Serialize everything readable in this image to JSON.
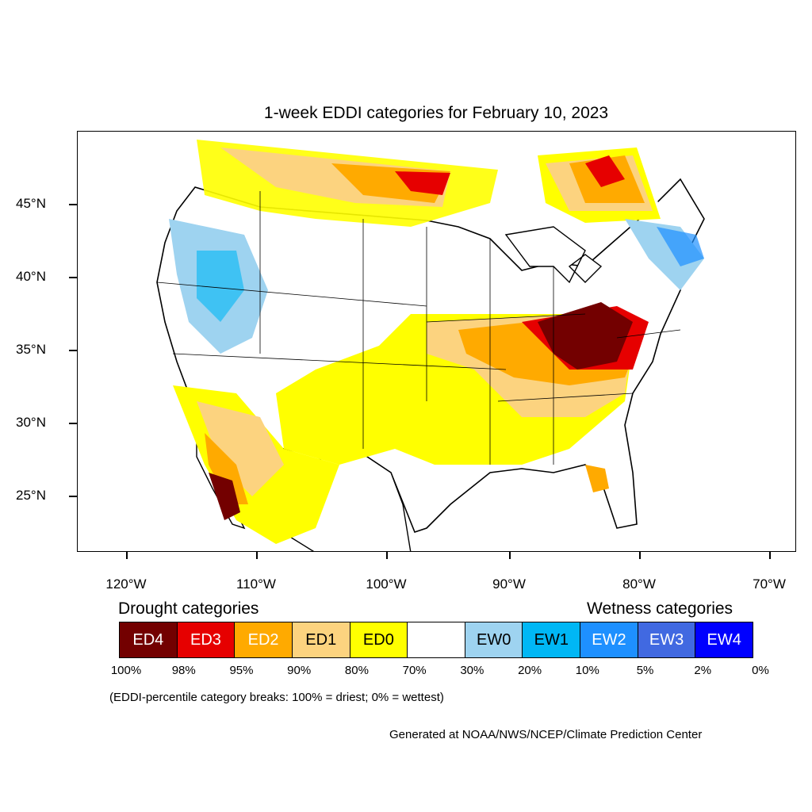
{
  "title": "1-week EDDI categories for February 10, 2023",
  "map": {
    "lat_labels": [
      "45°N",
      "40°N",
      "35°N",
      "30°N",
      "25°N"
    ],
    "lon_labels": [
      "120°W",
      "110°W",
      "100°W",
      "90°W",
      "80°W",
      "70°W"
    ]
  },
  "legend": {
    "drought_title": "Drought categories",
    "wetness_title": "Wetness categories",
    "categories": [
      {
        "label": "ED4",
        "color": "#730000",
        "text_color": "#ffffff"
      },
      {
        "label": "ED3",
        "color": "#e60000",
        "text_color": "#ffffff"
      },
      {
        "label": "ED2",
        "color": "#ffaa00",
        "text_color": "#ffffff"
      },
      {
        "label": "ED1",
        "color": "#fcd37f",
        "text_color": "#000000"
      },
      {
        "label": "ED0",
        "color": "#ffff00",
        "text_color": "#000000"
      },
      {
        "label": "",
        "color": "#ffffff",
        "text_color": "#000000"
      },
      {
        "label": "EW0",
        "color": "#9ed3f0",
        "text_color": "#000000"
      },
      {
        "label": "EW1",
        "color": "#00b7f5",
        "text_color": "#000000"
      },
      {
        "label": "EW2",
        "color": "#1e90ff",
        "text_color": "#ffffff"
      },
      {
        "label": "EW3",
        "color": "#4169e1",
        "text_color": "#ffffff"
      },
      {
        "label": "EW4",
        "color": "#0000ff",
        "text_color": "#ffffff"
      }
    ],
    "percentiles": [
      "100%",
      "98%",
      "95%",
      "90%",
      "80%",
      "70%",
      "30%",
      "20%",
      "10%",
      "5%",
      "2%",
      "0%"
    ]
  },
  "note": "(EDDI-percentile category breaks: 100% = driest; 0% = wettest)",
  "credit": "Generated at NOAA/NWS/NCEP/Climate Prediction Center"
}
